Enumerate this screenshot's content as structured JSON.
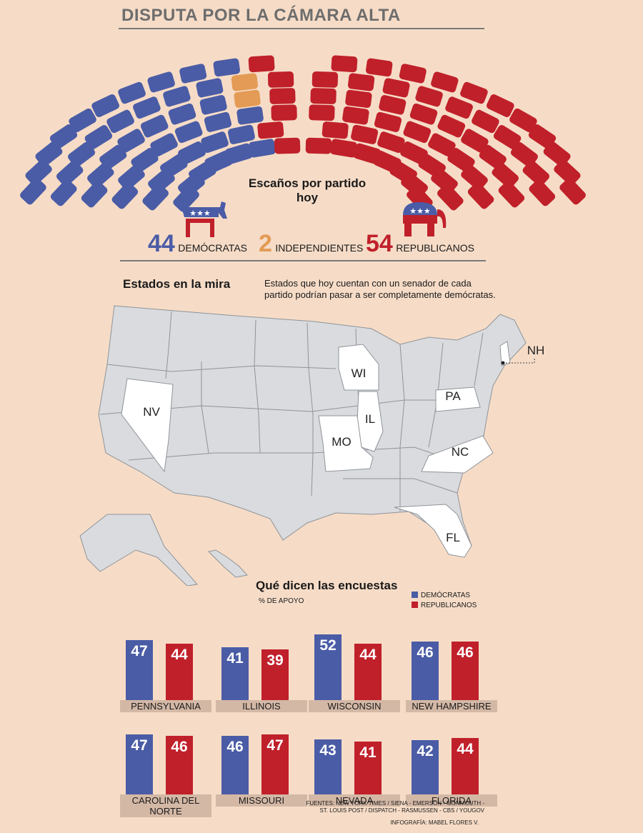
{
  "title": "DISPUTA POR LA CÁMARA ALTA",
  "colors": {
    "dem": "#4a5ca6",
    "rep": "#c0202a",
    "ind": "#e39b55",
    "bg": "#f6dcc7",
    "state": "#d9dbde",
    "target": "#ffffff"
  },
  "seats": {
    "label": "Escaños por partido hoy",
    "democrats": {
      "count": "44",
      "label": "DEMÓCRATAS"
    },
    "independents": {
      "count": "2",
      "label": "INDEPENDIENTES"
    },
    "republicans": {
      "count": "54",
      "label": "REPUBLICANOS"
    }
  },
  "map": {
    "title": "Estados en la mira",
    "description": "Estados que hoy cuentan con un senador de cada partido podrían pasar a ser completamente demócratas.",
    "states": [
      "NV",
      "WI",
      "IL",
      "MO",
      "PA",
      "NC",
      "FL",
      "NH"
    ]
  },
  "polls": {
    "title": "Qué dicen las encuestas",
    "subtitle": "% DE APOYO",
    "legend": {
      "dem": "DEMÓCRATAS",
      "rep": "REPUBLICANOS"
    }
  },
  "chart_data": {
    "type": "bar",
    "title": "Qué dicen las encuestas",
    "ylabel": "% DE APOYO",
    "categories": [
      "PENNSYLVANIA",
      "ILLINOIS",
      "WISCONSIN",
      "NEW HAMPSHIRE",
      "CAROLINA DEL NORTE",
      "MISSOURI",
      "NEVADA",
      "FLORIDA"
    ],
    "series": [
      {
        "name": "DEMÓCRATAS",
        "values": [
          47,
          41,
          52,
          46,
          47,
          46,
          43,
          42
        ]
      },
      {
        "name": "REPUBLICANOS",
        "values": [
          44,
          39,
          44,
          46,
          46,
          47,
          41,
          44
        ]
      }
    ],
    "ylim": [
      0,
      52
    ]
  },
  "sources": "FUENTES: NEW YORK TIMES / SIENA - EMERSON - MONMOUTH - ST. LOUIS POST / DISPATCH - RASMUSSEN - CBS / YOUGOV",
  "credit": "INFOGRAFÍA: MABEL FLORES V."
}
